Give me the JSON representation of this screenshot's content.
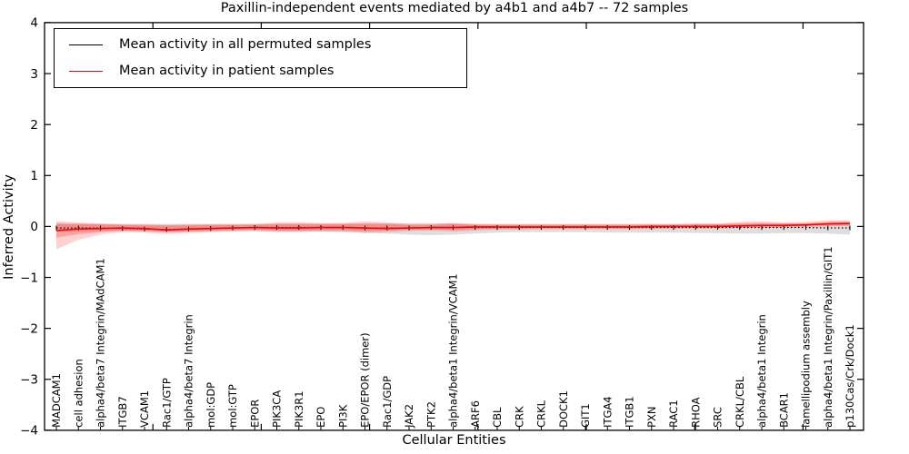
{
  "title": "Paxillin-independent events mediated by a4b1 and a4b7 -- 72 samples",
  "legend": {
    "items": [
      {
        "label": "Mean activity in all permuted samples",
        "color": "#000000"
      },
      {
        "label": "Mean activity in patient samples",
        "color": "#ff0000"
      }
    ]
  },
  "chart_data": {
    "type": "line",
    "title": "Paxillin-independent events mediated by a4b1 and a4b7 -- 72 samples",
    "xlabel": "Cellular Entities",
    "ylabel": "Inferred Activity",
    "ylim": [
      -4,
      4
    ],
    "yticks": [
      -4,
      -3,
      -2,
      -1,
      0,
      1,
      2,
      3,
      4
    ],
    "grid": false,
    "legend_position": "upper left",
    "x_tick_label_rotation": 90,
    "categories": [
      "MADCAM1",
      "cell adhesion",
      "alpha4/beta7 Integrin/MAdCAM1",
      "ITGB7",
      "VCAM1",
      "Rac1/GTP",
      "alpha4/beta7 Integrin",
      "mol:GDP",
      "mol:GTP",
      "EPOR",
      "PIK3CA",
      "PIK3R1",
      "EPO",
      "PI3K",
      "EPO/EPOR (dimer)",
      "Rac1/GDP",
      "JAK2",
      "PTK2",
      "alpha4/beta1 Integrin/VCAM1",
      "ARF6",
      "CBL",
      "CRK",
      "CRKL",
      "DOCK1",
      "GIT1",
      "ITGA4",
      "ITGB1",
      "PXN",
      "RAC1",
      "RHOA",
      "SRC",
      "CRKL/CBL",
      "alpha4/beta1 Integrin",
      "BCAR1",
      "lamellipodium assembly",
      "alpha4/beta1 Integrin/Paxillin/GIT1",
      "p130Cas/Crk/Dock1"
    ],
    "series": [
      {
        "name": "Mean activity in all permuted samples",
        "color": "#000000",
        "style": "dotted-with-tick-markers",
        "values": [
          -0.03,
          -0.03,
          -0.03,
          -0.04,
          -0.05,
          -0.06,
          -0.05,
          -0.04,
          -0.03,
          -0.02,
          -0.02,
          -0.02,
          -0.02,
          -0.02,
          -0.03,
          -0.03,
          -0.03,
          -0.02,
          -0.02,
          -0.02,
          -0.02,
          -0.02,
          -0.02,
          -0.02,
          -0.02,
          -0.02,
          -0.02,
          -0.02,
          -0.02,
          -0.02,
          -0.02,
          -0.02,
          -0.02,
          -0.02,
          -0.02,
          -0.03,
          -0.03
        ]
      },
      {
        "name": "Mean activity in patient samples",
        "color": "#ff0000",
        "style": "solid",
        "values": [
          -0.08,
          -0.05,
          -0.04,
          -0.03,
          -0.04,
          -0.07,
          -0.05,
          -0.04,
          -0.03,
          -0.02,
          -0.03,
          -0.03,
          -0.02,
          -0.02,
          -0.03,
          -0.04,
          -0.03,
          -0.02,
          -0.02,
          -0.01,
          -0.01,
          -0.01,
          -0.01,
          -0.01,
          -0.01,
          -0.01,
          -0.01,
          0.0,
          0.0,
          0.0,
          0.0,
          0.01,
          0.02,
          0.02,
          0.03,
          0.05,
          0.06
        ]
      }
    ],
    "bands": [
      {
        "name": "permuted-envelope",
        "color": "#888888",
        "opacity": 0.28,
        "top": [
          0.05,
          0.05,
          0.05,
          0.05,
          0.05,
          0.05,
          0.05,
          0.05,
          0.05,
          0.05,
          0.05,
          0.05,
          0.05,
          0.05,
          0.05,
          0.06,
          0.06,
          0.06,
          0.06,
          0.05,
          0.05,
          0.05,
          0.05,
          0.05,
          0.05,
          0.05,
          0.05,
          0.05,
          0.05,
          0.05,
          0.05,
          0.05,
          0.05,
          0.05,
          0.05,
          0.05,
          0.05
        ],
        "bottom": [
          -0.1,
          -0.1,
          -0.09,
          -0.09,
          -0.09,
          -0.1,
          -0.1,
          -0.1,
          -0.09,
          -0.09,
          -0.1,
          -0.1,
          -0.1,
          -0.11,
          -0.12,
          -0.14,
          -0.16,
          -0.17,
          -0.16,
          -0.14,
          -0.12,
          -0.11,
          -0.11,
          -0.11,
          -0.11,
          -0.12,
          -0.12,
          -0.12,
          -0.12,
          -0.13,
          -0.13,
          -0.14,
          -0.14,
          -0.13,
          -0.13,
          -0.14,
          -0.16
        ]
      },
      {
        "name": "patient-envelope-outer",
        "color": "#ff3333",
        "opacity": 0.22,
        "top": [
          0.1,
          0.08,
          0.06,
          0.04,
          0.04,
          0.03,
          0.04,
          0.04,
          0.04,
          0.05,
          0.08,
          0.08,
          0.07,
          0.07,
          0.1,
          0.08,
          0.05,
          0.05,
          0.07,
          0.05,
          0.04,
          0.04,
          0.04,
          0.04,
          0.04,
          0.04,
          0.04,
          0.05,
          0.05,
          0.06,
          0.06,
          0.09,
          0.1,
          0.08,
          0.09,
          0.12,
          0.12
        ],
        "bottom": [
          -0.45,
          -0.26,
          -0.16,
          -0.11,
          -0.12,
          -0.15,
          -0.13,
          -0.11,
          -0.1,
          -0.09,
          -0.11,
          -0.11,
          -0.1,
          -0.1,
          -0.13,
          -0.11,
          -0.09,
          -0.08,
          -0.1,
          -0.08,
          -0.06,
          -0.06,
          -0.05,
          -0.05,
          -0.05,
          -0.05,
          -0.05,
          -0.05,
          -0.04,
          -0.04,
          -0.04,
          -0.03,
          -0.02,
          -0.02,
          -0.01,
          0.0,
          0.0
        ]
      },
      {
        "name": "patient-envelope-inner",
        "color": "#ff3333",
        "opacity": 0.3,
        "top": [
          0.06,
          0.05,
          0.04,
          0.03,
          0.02,
          0.02,
          0.02,
          0.03,
          0.03,
          0.03,
          0.05,
          0.05,
          0.05,
          0.05,
          0.06,
          0.05,
          0.03,
          0.03,
          0.05,
          0.03,
          0.03,
          0.03,
          0.03,
          0.03,
          0.03,
          0.03,
          0.03,
          0.03,
          0.03,
          0.04,
          0.04,
          0.06,
          0.07,
          0.06,
          0.06,
          0.09,
          0.09
        ],
        "bottom": [
          -0.22,
          -0.15,
          -0.11,
          -0.08,
          -0.09,
          -0.11,
          -0.1,
          -0.08,
          -0.07,
          -0.06,
          -0.08,
          -0.08,
          -0.07,
          -0.07,
          -0.09,
          -0.08,
          -0.06,
          -0.06,
          -0.07,
          -0.05,
          -0.04,
          -0.04,
          -0.03,
          -0.03,
          -0.03,
          -0.03,
          -0.03,
          -0.03,
          -0.02,
          -0.02,
          -0.02,
          -0.01,
          0.0,
          0.0,
          0.01,
          0.02,
          0.02
        ]
      }
    ]
  }
}
